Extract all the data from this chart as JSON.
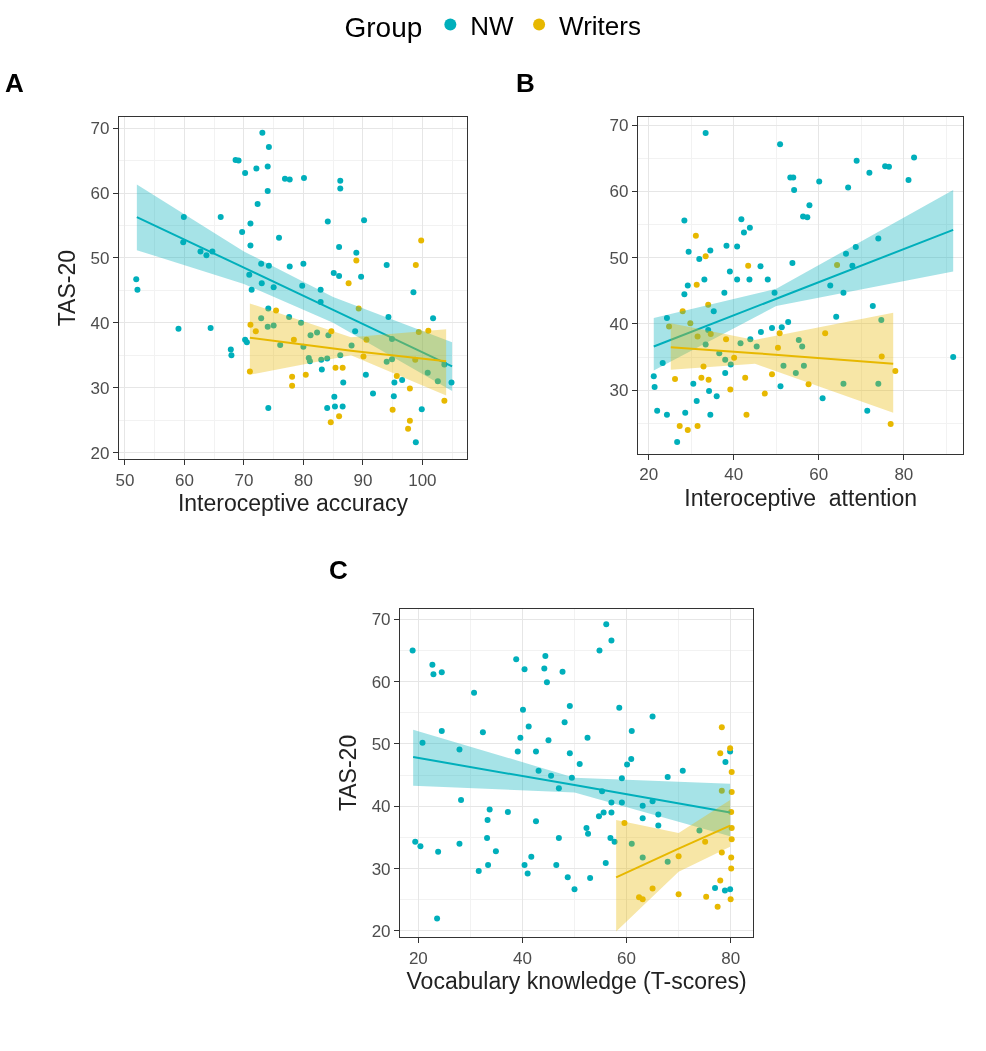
{
  "chart_data": [
    {
      "type": "scatter",
      "xlabel": "Interoceptive accuracy",
      "ylabel": "TAS-20",
      "annotations": [
        "A"
      ],
      "legend": "top",
      "legend_title": "Group",
      "grid": true,
      "marker": "circle",
      "xlim": [
        49,
        107.5
      ],
      "ylim": [
        19,
        71.7
      ],
      "xticks": [
        50,
        60,
        70,
        80,
        90,
        100
      ],
      "yticks": [
        20,
        30,
        40,
        50,
        60,
        70
      ],
      "series": [
        {
          "name": "NW",
          "color": "#00afbb",
          "x": [
            73.1,
            74.2,
            68.6,
            69.1,
            70.2,
            72.1,
            74.0,
            76.9,
            77.7,
            80.1,
            86.2,
            86.2,
            74.0,
            72.3,
            59.9,
            66.1,
            84.1,
            90.2,
            71.1,
            69.7,
            75.9,
            59.8,
            71.1,
            86.0,
            88.9,
            62.7,
            63.7,
            64.7,
            51.9,
            52.1,
            72.9,
            74.2,
            77.7,
            80.0,
            94.0,
            85.1,
            86.0,
            89.7,
            70.9,
            73.0,
            71.3,
            75.0,
            79.8,
            82.9,
            98.5,
            82.9,
            74.1,
            77.6,
            72.9,
            74.0,
            75.0,
            94.3,
            101.8,
            59.0,
            64.4,
            79.6,
            81.2,
            82.3,
            84.2,
            88.7,
            70.2,
            70.5,
            76.1,
            80.0,
            88.1,
            94.9,
            67.8,
            67.9,
            80.9,
            81.1,
            83.0,
            84.0,
            86.2,
            94.0,
            94.9,
            103.7,
            83.1,
            90.5,
            86.7,
            96.6,
            95.3,
            100.9,
            102.6,
            104.9,
            91.7,
            95.2,
            85.2,
            74.1,
            84.0,
            85.3,
            86.6,
            99.9,
            98.9
          ],
          "values": [
            69.3,
            67.1,
            65.1,
            65.0,
            63.1,
            63.8,
            64.1,
            62.2,
            62.1,
            62.3,
            61.9,
            60.7,
            60.3,
            58.3,
            56.3,
            56.3,
            55.6,
            55.8,
            55.3,
            54.0,
            53.1,
            52.4,
            51.9,
            51.7,
            50.8,
            51.0,
            50.4,
            51.0,
            46.7,
            45.1,
            49.1,
            48.8,
            48.7,
            49.1,
            48.9,
            47.7,
            47.2,
            47.1,
            47.4,
            46.1,
            45.1,
            45.5,
            45.7,
            45.1,
            44.7,
            43.2,
            42.2,
            40.9,
            40.7,
            39.4,
            39.6,
            40.9,
            40.7,
            39.1,
            39.2,
            40.0,
            38.1,
            38.5,
            38.1,
            38.7,
            37.4,
            37.0,
            36.6,
            36.3,
            36.5,
            37.5,
            35.9,
            35.0,
            34.6,
            34.1,
            34.3,
            34.5,
            35.0,
            34.0,
            34.4,
            33.6,
            32.8,
            32.0,
            30.8,
            31.2,
            30.8,
            32.3,
            31.0,
            30.8,
            29.1,
            28.7,
            28.6,
            26.9,
            26.9,
            27.1,
            27.1,
            26.7,
            21.6
          ]
        },
        {
          "name": "Writers",
          "color": "#e7b800",
          "x": [
            99.8,
            98.9,
            88.9,
            87.6,
            89.3,
            75.4,
            71.1,
            72.0,
            78.4,
            84.7,
            90.6,
            99.4,
            101.0,
            90.1,
            98.8,
            71.0,
            78.1,
            78.1,
            80.4,
            85.4,
            86.6,
            95.7,
            97.9,
            103.7,
            95.0,
            86.0,
            84.6,
            97.9,
            97.6
          ],
          "values": [
            52.7,
            48.9,
            49.6,
            46.1,
            42.2,
            41.9,
            39.7,
            38.7,
            37.4,
            38.7,
            37.4,
            38.6,
            38.8,
            34.8,
            34.3,
            32.5,
            31.7,
            30.3,
            32.0,
            33.1,
            33.1,
            31.8,
            29.9,
            28.0,
            26.6,
            25.6,
            24.7,
            24.9,
            23.7
          ]
        },
        {
          "type": "line",
          "color": "#00afbb",
          "marker": "none",
          "x": [
            52,
            70,
            85,
            105
          ],
          "values": [
            56.3,
            48.5,
            42.0,
            33.3
          ],
          "lower": [
            51.2,
            46.0,
            40.0,
            29.5
          ],
          "upper": [
            61.3,
            51.0,
            44.0,
            37.0
          ]
        },
        {
          "type": "line",
          "color": "#e7b800",
          "marker": "none",
          "x": [
            71,
            88,
            104
          ],
          "values": [
            37.7,
            35.7,
            34.1
          ],
          "lower": [
            32.0,
            35.0,
            28.8
          ],
          "upper": [
            43.0,
            37.8,
            39.0
          ]
        }
      ]
    },
    {
      "type": "scatter",
      "xlabel": "Interoceptive  attention",
      "annotations": [
        "B"
      ],
      "grid": true,
      "marker": "circle",
      "xlim": [
        17.5,
        94
      ],
      "ylim": [
        20.4,
        71.2
      ],
      "xticks": [
        20,
        40,
        60,
        80
      ],
      "yticks": [
        30,
        40,
        50,
        60,
        70
      ],
      "series": [
        {
          "color": "#00afbb",
          "x": [
            33.4,
            50.9,
            82.4,
            68.9,
            71.9,
            75.6,
            76.5,
            81.1,
            53.3,
            54.0,
            54.2,
            60.1,
            66.9,
            57.8,
            56.3,
            57.3,
            28.4,
            41.8,
            43.8,
            42.4,
            29.4,
            31.9,
            34.5,
            38.3,
            39.1,
            40.8,
            40.8,
            43.7,
            46.3,
            48.0,
            53.8,
            68.7,
            74.0,
            66.4,
            67.9,
            28.4,
            29.2,
            33.1,
            37.8,
            49.6,
            62.7,
            65.8,
            35.3,
            24.3,
            72.7,
            64.1,
            52.8,
            49.0,
            46.4,
            51.3,
            43.9,
            45.4,
            41.6,
            55.3,
            56.1,
            74.7,
            34.0,
            33.4,
            36.6,
            38.0,
            39.3,
            23.3,
            51.7,
            56.5,
            54.6,
            38.0,
            21.2,
            21.4,
            30.5,
            51.0,
            65.8,
            74.0,
            60.9,
            31.3,
            34.2,
            36.0,
            22.0,
            24.3,
            28.6,
            34.5,
            71.4,
            26.7,
            91.6
          ],
          "values": [
            68.8,
            67.1,
            65.1,
            64.6,
            62.8,
            63.8,
            63.7,
            61.7,
            62.1,
            62.1,
            60.2,
            61.5,
            60.6,
            57.9,
            56.2,
            56.1,
            55.6,
            55.8,
            54.5,
            53.8,
            50.9,
            49.8,
            51.1,
            51.8,
            47.9,
            51.7,
            46.7,
            46.7,
            48.7,
            46.7,
            49.2,
            51.6,
            52.9,
            50.6,
            48.8,
            44.5,
            45.8,
            46.7,
            44.7,
            44.7,
            45.8,
            44.7,
            41.9,
            40.9,
            42.7,
            41.1,
            40.3,
            39.4,
            38.8,
            39.5,
            37.7,
            36.6,
            37.1,
            37.6,
            36.6,
            40.6,
            39.1,
            36.9,
            35.6,
            34.6,
            33.9,
            34.1,
            33.7,
            33.7,
            32.6,
            32.6,
            32.1,
            30.5,
            31.0,
            30.6,
            31.0,
            31.0,
            28.8,
            28.4,
            29.9,
            29.1,
            26.9,
            26.3,
            26.6,
            26.3,
            26.9,
            22.2,
            35.0
          ]
        },
        {
          "color": "#e7b800",
          "x": [
            31.1,
            33.4,
            31.3,
            43.4,
            28.0,
            34.0,
            24.8,
            29.8,
            31.5,
            34.6,
            38.2,
            40.1,
            50.4,
            50.8,
            61.5,
            64.3,
            26.2,
            32.4,
            34.1,
            32.9,
            42.7,
            39.2,
            49.0,
            47.3,
            57.6,
            78.0,
            27.3,
            29.2,
            31.5,
            43.0,
            76.9,
            74.8
          ],
          "values": [
            53.3,
            50.2,
            45.9,
            48.8,
            41.9,
            42.9,
            39.6,
            40.1,
            38.1,
            38.5,
            37.7,
            34.9,
            36.4,
            38.6,
            38.6,
            48.9,
            31.7,
            31.9,
            31.6,
            33.6,
            31.9,
            30.1,
            32.4,
            29.5,
            30.9,
            32.9,
            24.6,
            24.0,
            24.6,
            26.3,
            24.9,
            35.1
          ]
        },
        {
          "type": "line",
          "color": "#00afbb",
          "marker": "none",
          "x": [
            21.2,
            50,
            91.6
          ],
          "values": [
            36.6,
            43.8,
            54.2
          ],
          "lower": [
            33.0,
            42.7,
            47.9
          ],
          "upper": [
            40.9,
            45.3,
            60.2
          ]
        },
        {
          "type": "line",
          "color": "#e7b800",
          "marker": "none",
          "x": [
            25.2,
            45,
            77.5
          ],
          "values": [
            36.5,
            35.6,
            34.0
          ],
          "lower": [
            33.1,
            34.0,
            26.6
          ],
          "upper": [
            40.1,
            37.6,
            41.7
          ]
        }
      ]
    },
    {
      "type": "scatter",
      "xlabel": "Vocabulary knowledge (T-scores)",
      "ylabel": "TAS-20",
      "annotations": [
        "C"
      ],
      "grid": true,
      "marker": "circle",
      "xlim": [
        16.5,
        84.3
      ],
      "ylim": [
        19,
        71.7
      ],
      "xticks": [
        20,
        40,
        60,
        80
      ],
      "yticks": [
        20,
        30,
        40,
        50,
        60,
        70
      ],
      "series": [
        {
          "color": "#00afbb",
          "x": [
            56.1,
            57.1,
            54.8,
            18.9,
            22.7,
            22.9,
            24.5,
            38.8,
            40.4,
            44.4,
            44.2,
            44.7,
            47.7,
            30.7,
            40.1,
            49.1,
            48.1,
            41.2,
            58.6,
            65.0,
            24.5,
            32.4,
            52.5,
            39.6,
            45.0,
            61.0,
            20.8,
            27.9,
            39.1,
            42.6,
            49.1,
            51.0,
            60.9,
            60.1,
            79.9,
            79.0,
            70.8,
            67.9,
            43.1,
            45.5,
            49.5,
            47.0,
            59.1,
            55.3,
            57.1,
            59.1,
            63.1,
            65.0,
            66.1,
            55.6,
            57.1,
            54.7,
            63.1,
            28.2,
            33.7,
            37.2,
            33.3,
            42.6,
            52.3,
            52.6,
            66.1,
            74.0,
            56.9,
            57.7,
            61.0,
            19.4,
            20.4,
            27.9,
            23.8,
            33.2,
            47.0,
            34.9,
            63.1,
            67.9,
            41.7,
            31.6,
            33.4,
            40.4,
            41.0,
            46.5,
            48.7,
            53.0,
            56.0,
            50.0,
            77.0,
            78.9,
            79.9,
            23.6
          ],
          "values": [
            69.2,
            66.6,
            65.0,
            65.0,
            62.7,
            61.2,
            61.5,
            63.6,
            62.0,
            64.1,
            62.1,
            59.9,
            61.6,
            58.2,
            55.5,
            56.1,
            53.5,
            52.8,
            55.8,
            54.4,
            52.1,
            51.9,
            51.0,
            51.0,
            50.6,
            52.1,
            50.2,
            49.1,
            48.8,
            48.8,
            48.5,
            46.8,
            47.6,
            46.7,
            48.8,
            47.1,
            45.7,
            44.7,
            45.7,
            44.9,
            44.6,
            42.9,
            44.5,
            42.4,
            40.6,
            40.6,
            40.1,
            40.8,
            38.7,
            39.0,
            39.0,
            38.4,
            38.1,
            41.0,
            39.5,
            39.1,
            37.8,
            37.6,
            36.5,
            35.6,
            36.9,
            36.1,
            34.9,
            34.3,
            34.0,
            34.3,
            33.6,
            34.0,
            32.7,
            34.9,
            34.9,
            32.8,
            31.8,
            31.1,
            31.9,
            29.6,
            30.6,
            30.6,
            29.2,
            30.6,
            28.6,
            28.5,
            30.9,
            26.7,
            26.9,
            26.5,
            26.7,
            22.0
          ]
        },
        {
          "color": "#e7b800",
          "x": [
            79.9,
            80.2,
            80.2,
            80.1,
            80.2,
            80.2,
            80.1,
            80.1,
            78.3,
            78.0,
            78.3,
            78.3,
            59.6,
            70.0,
            75.1,
            78.0,
            65.0,
            70.0,
            63.1,
            62.4,
            75.3,
            77.5,
            80.0
          ],
          "values": [
            49.3,
            45.5,
            42.3,
            39.1,
            36.5,
            34.7,
            31.8,
            30.0,
            52.7,
            48.5,
            42.5,
            32.6,
            37.3,
            32.0,
            34.3,
            28.1,
            26.8,
            25.9,
            25.1,
            25.4,
            25.5,
            23.9,
            25.1
          ]
        },
        {
          "type": "line",
          "color": "#00afbb",
          "marker": "none",
          "x": [
            19,
            50,
            79.9
          ],
          "values": [
            47.9,
            43.4,
            39.0
          ],
          "lower": [
            43.3,
            42.2,
            35.2
          ],
          "upper": [
            52.3,
            44.6,
            43.6
          ]
        },
        {
          "type": "line",
          "color": "#e7b800",
          "marker": "none",
          "x": [
            58,
            70,
            79.9
          ],
          "values": [
            28.6,
            33.2,
            36.9
          ],
          "lower": [
            19.9,
            29.5,
            33.5
          ],
          "upper": [
            37.8,
            35.7,
            41.0
          ]
        }
      ]
    }
  ]
}
